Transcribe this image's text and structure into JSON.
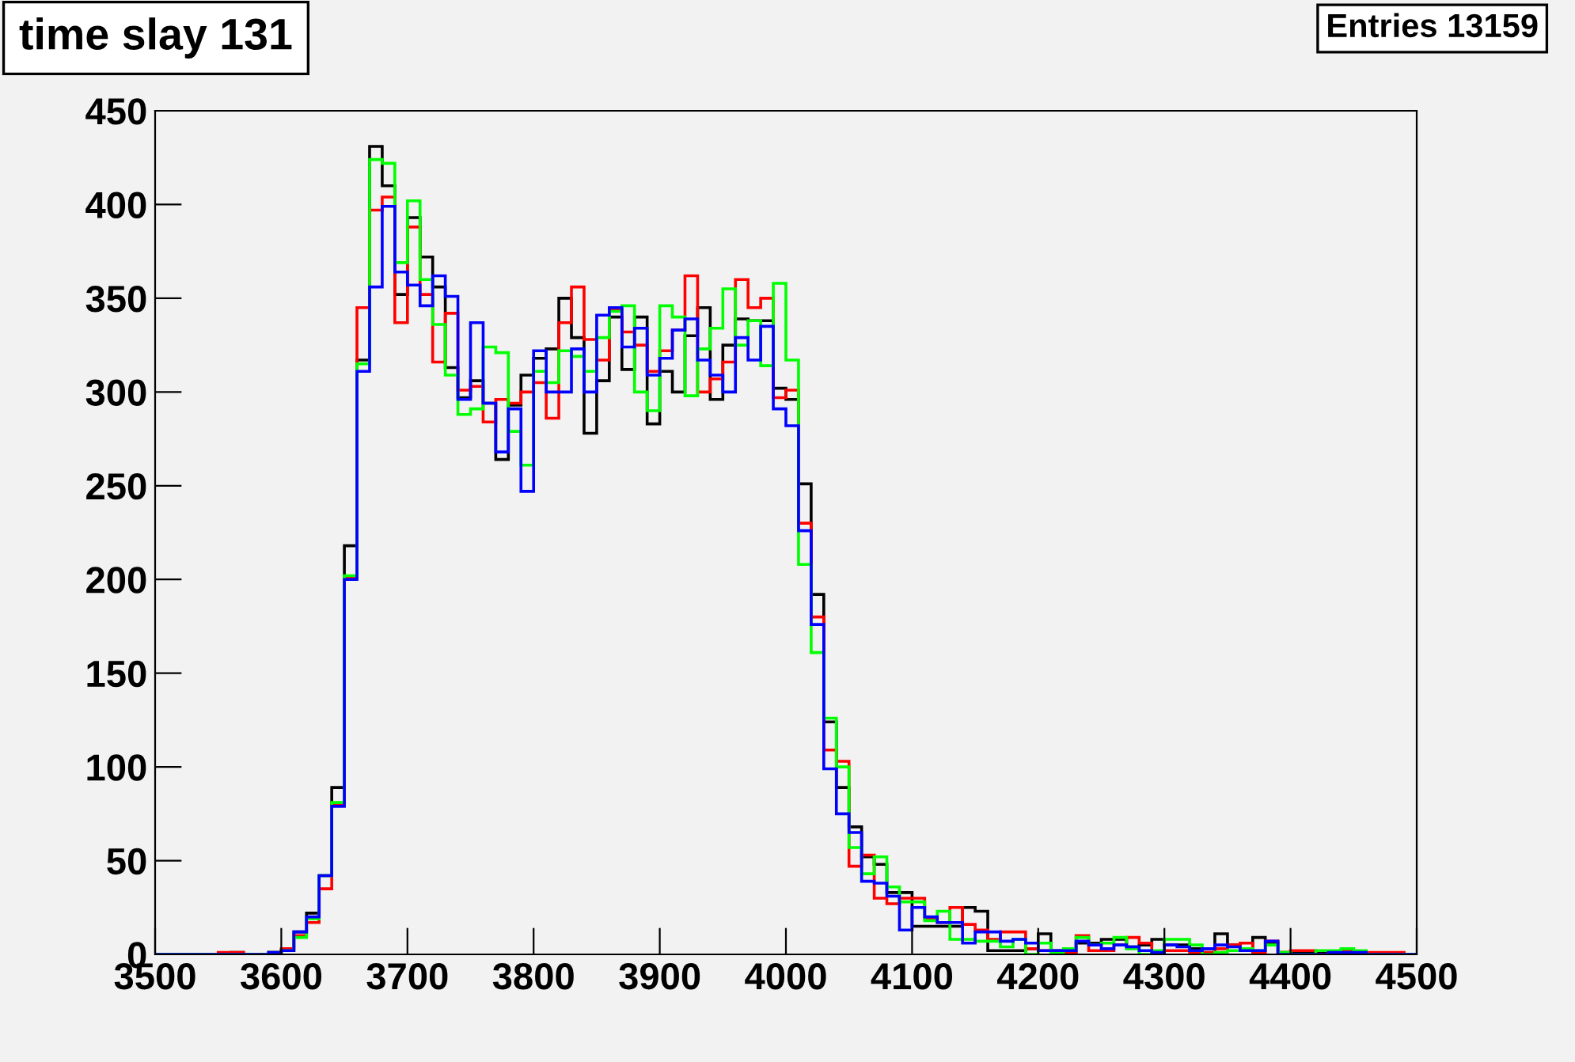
{
  "chart_data": {
    "type": "histogram",
    "title": "time slay 131",
    "annotations": [
      "Entries 13159"
    ],
    "bins": [
      3500,
      3510,
      3520,
      3530,
      3540,
      3550,
      3560,
      3570,
      3580,
      3590,
      3600,
      3610,
      3620,
      3630,
      3640,
      3650,
      3660,
      3670,
      3680,
      3690,
      3700,
      3710,
      3720,
      3730,
      3740,
      3750,
      3760,
      3770,
      3780,
      3790,
      3800,
      3810,
      3820,
      3830,
      3840,
      3850,
      3860,
      3870,
      3880,
      3890,
      3900,
      3910,
      3920,
      3930,
      3940,
      3950,
      3960,
      3970,
      3980,
      3990,
      4000,
      4010,
      4020,
      4030,
      4040,
      4050,
      4060,
      4070,
      4080,
      4090,
      4100,
      4110,
      4120,
      4130,
      4140,
      4150,
      4160,
      4170,
      4180,
      4190,
      4200,
      4210,
      4220,
      4230,
      4240,
      4250,
      4260,
      4270,
      4280,
      4290,
      4300,
      4310,
      4320,
      4330,
      4340,
      4350,
      4360,
      4370,
      4380,
      4390,
      4400,
      4410,
      4420,
      4430,
      4440,
      4450,
      4460,
      4470,
      4480,
      4490,
      4500
    ],
    "series": [
      {
        "color": "#000000",
        "values": [
          0,
          0,
          0,
          0,
          0,
          0,
          1,
          0,
          0,
          1,
          2,
          12,
          22,
          42,
          89,
          218,
          317,
          431,
          410,
          352,
          393,
          372,
          356,
          313,
          297,
          306,
          294,
          264,
          293,
          309,
          318,
          323,
          350,
          329,
          278,
          306,
          340,
          312,
          340,
          283,
          311,
          300,
          330,
          345,
          296,
          325,
          339,
          338,
          338,
          302,
          296,
          251,
          192,
          124,
          89,
          68,
          52,
          48,
          33,
          33,
          15,
          15,
          15,
          15,
          25,
          23,
          2,
          2,
          2,
          3,
          11,
          2,
          1,
          6,
          6,
          8,
          8,
          4,
          5,
          8,
          5,
          5,
          3,
          3,
          11,
          5,
          3,
          9,
          6,
          1,
          1,
          1,
          1,
          1,
          2,
          1,
          0,
          0,
          0,
          0
        ]
      },
      {
        "color": "#ff0000",
        "values": [
          0,
          0,
          0,
          0,
          0,
          1,
          1,
          0,
          0,
          1,
          3,
          10,
          17,
          35,
          80,
          201,
          345,
          397,
          404,
          337,
          388,
          352,
          316,
          342,
          301,
          303,
          284,
          296,
          294,
          300,
          305,
          286,
          337,
          356,
          328,
          317,
          344,
          332,
          325,
          311,
          322,
          333,
          362,
          300,
          307,
          316,
          360,
          345,
          350,
          297,
          301,
          230,
          180,
          109,
          103,
          47,
          53,
          30,
          27,
          30,
          30,
          19,
          17,
          25,
          16,
          13,
          8,
          12,
          12,
          3,
          2,
          1,
          1,
          10,
          2,
          2,
          5,
          9,
          6,
          1,
          2,
          2,
          1,
          1,
          3,
          5,
          6,
          1,
          7,
          1,
          2,
          2,
          0,
          1,
          2,
          1,
          1,
          1,
          1,
          0
        ]
      },
      {
        "color": "#00ff00",
        "values": [
          0,
          0,
          0,
          0,
          0,
          0,
          0,
          0,
          0,
          1,
          2,
          9,
          19,
          42,
          81,
          202,
          315,
          424,
          422,
          369,
          402,
          360,
          336,
          309,
          288,
          291,
          324,
          321,
          279,
          261,
          311,
          305,
          322,
          319,
          311,
          329,
          343,
          346,
          300,
          290,
          346,
          340,
          298,
          323,
          334,
          355,
          325,
          338,
          314,
          358,
          317,
          208,
          161,
          126,
          100,
          57,
          43,
          52,
          36,
          28,
          28,
          18,
          23,
          8,
          8,
          7,
          7,
          4,
          8,
          0,
          6,
          1,
          3,
          9,
          5,
          6,
          9,
          3,
          0,
          2,
          8,
          8,
          5,
          0,
          1,
          2,
          3,
          2,
          5,
          1,
          0,
          0,
          2,
          2,
          3,
          2,
          0,
          0,
          0,
          0
        ]
      },
      {
        "color": "#0000ff",
        "values": [
          0,
          0,
          0,
          0,
          0,
          0,
          0,
          0,
          0,
          1,
          2,
          12,
          20,
          42,
          79,
          200,
          311,
          356,
          399,
          364,
          357,
          346,
          362,
          351,
          296,
          337,
          294,
          268,
          291,
          247,
          322,
          300,
          300,
          323,
          300,
          341,
          345,
          324,
          334,
          309,
          318,
          333,
          339,
          317,
          309,
          300,
          329,
          317,
          335,
          291,
          282,
          226,
          176,
          99,
          75,
          65,
          39,
          38,
          31,
          13,
          25,
          20,
          17,
          17,
          6,
          12,
          12,
          7,
          8,
          6,
          2,
          2,
          2,
          7,
          5,
          3,
          5,
          4,
          2,
          1,
          5,
          4,
          2,
          3,
          5,
          4,
          2,
          2,
          7,
          0,
          0,
          0,
          0,
          1,
          1,
          1,
          0,
          0,
          0,
          0
        ]
      }
    ],
    "xlim": [
      3500,
      4500
    ],
    "xticks": [
      3500,
      3600,
      3700,
      3800,
      3900,
      4000,
      4100,
      4200,
      4300,
      4400,
      4500
    ],
    "ylim": [
      0,
      450
    ],
    "yticks": [
      0,
      50,
      100,
      150,
      200,
      250,
      300,
      350,
      400,
      450
    ]
  }
}
